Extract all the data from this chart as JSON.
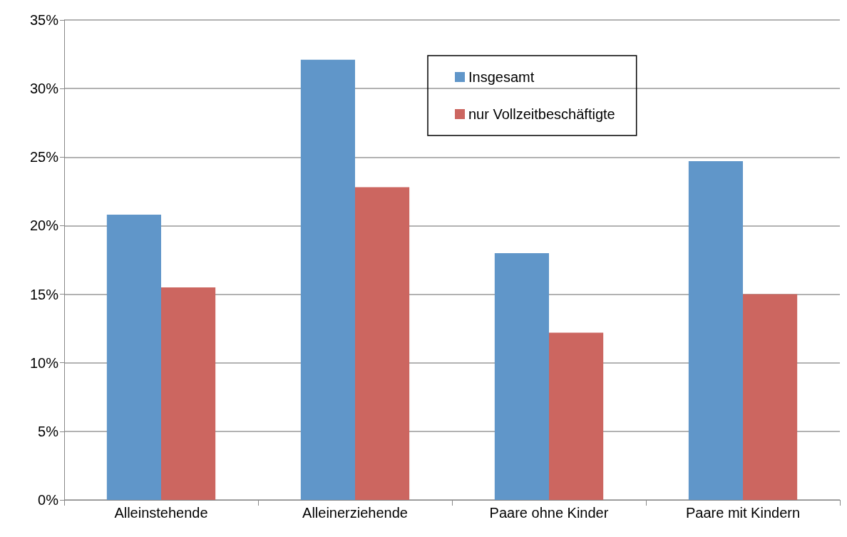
{
  "chart_data": {
    "type": "bar",
    "categories": [
      "Alleinstehende",
      "Alleinerziehende",
      "Paare ohne Kinder",
      "Paare mit Kindern"
    ],
    "series": [
      {
        "name": "Insgesamt",
        "color": "#6096c9",
        "values": [
          20.8,
          32.1,
          18.0,
          24.7
        ]
      },
      {
        "name": "nur Vollzeitbeschäftigte",
        "color": "#cc6660",
        "values": [
          15.5,
          22.8,
          12.2,
          15.0
        ]
      }
    ],
    "ylim": [
      0,
      35
    ],
    "yticks": [
      {
        "value": 0,
        "label": "0%"
      },
      {
        "value": 5,
        "label": "5%"
      },
      {
        "value": 10,
        "label": "10%"
      },
      {
        "value": 15,
        "label": "15%"
      },
      {
        "value": 20,
        "label": "20%"
      },
      {
        "value": 25,
        "label": "25%"
      },
      {
        "value": 30,
        "label": "30%"
      },
      {
        "value": 35,
        "label": "35%"
      }
    ],
    "grid": "y",
    "legend": "top"
  }
}
